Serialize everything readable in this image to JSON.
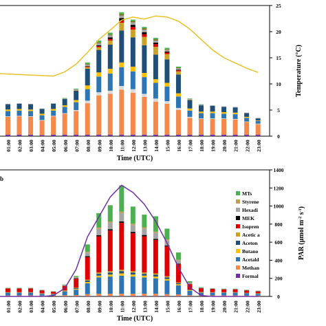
{
  "time_labels": [
    "01:00",
    "02:00",
    "03:00",
    "04:00",
    "05:00",
    "06:00",
    "07:00",
    "08:00",
    "09:00",
    "10:00",
    "11:00",
    "12:00",
    "13:00",
    "14:00",
    "15:00",
    "16:00",
    "17:00",
    "18:00",
    "19:00",
    "20:00",
    "21:00",
    "22:00",
    "23:00"
  ],
  "chart_data": [
    {
      "type": "bar",
      "panel": "top",
      "stacked": true,
      "overlay": "line",
      "xlabel": "Time (UTC)",
      "y2label": "Temperature (°C)",
      "y2lim": [
        0,
        25
      ],
      "y2ticks": [
        0,
        5,
        10,
        15,
        20,
        25
      ],
      "categories": [
        "01:00",
        "02:00",
        "03:00",
        "04:00",
        "05:00",
        "06:00",
        "07:00",
        "08:00",
        "09:00",
        "10:00",
        "11:00",
        "12:00",
        "13:00",
        "14:00",
        "15:00",
        "16:00",
        "17:00",
        "18:00",
        "19:00",
        "20:00",
        "21:00",
        "22:00",
        "23:00"
      ],
      "series": [
        {
          "color": "#7030a0",
          "values": [
            0.3,
            0.3,
            0.3,
            0.2,
            0.3,
            0.3,
            0.3,
            0.3,
            0.3,
            0.3,
            0.3,
            0.3,
            0.3,
            0.3,
            0.3,
            0.3,
            0.3,
            0.3,
            0.3,
            0.3,
            0.3,
            0.3,
            0.3
          ]
        },
        {
          "color": "#f4894a",
          "values": [
            3.4,
            3.5,
            3.4,
            2.8,
            3.5,
            4.0,
            4.5,
            6.0,
            7.5,
            7.8,
            8.6,
            8.0,
            7.2,
            6.3,
            5.9,
            4.7,
            3.2,
            3.0,
            3.0,
            3.0,
            2.9,
            2.4,
            2.0
          ]
        },
        {
          "color": "#d9d9d9",
          "values": [
            0.1,
            0.1,
            0.1,
            0.1,
            0.1,
            0.1,
            0.2,
            0.5,
            0.6,
            0.6,
            0.7,
            0.7,
            0.6,
            0.6,
            0.5,
            0.4,
            0.2,
            0.1,
            0.1,
            0.1,
            0.1,
            0.1,
            0.1
          ]
        },
        {
          "color": "#2e75b6",
          "values": [
            1.0,
            1.0,
            1.0,
            0.9,
            1.0,
            1.2,
            1.5,
            2.2,
            3.0,
            3.3,
            3.6,
            3.4,
            3.2,
            3.0,
            2.8,
            2.2,
            1.2,
            1.0,
            1.0,
            0.9,
            0.9,
            0.7,
            0.5
          ]
        },
        {
          "color": "#ffc000",
          "values": [
            0.3,
            0.3,
            0.3,
            0.3,
            0.3,
            0.3,
            0.4,
            0.7,
            0.8,
            0.9,
            0.9,
            0.9,
            0.8,
            0.7,
            0.7,
            0.6,
            0.4,
            0.3,
            0.3,
            0.3,
            0.3,
            0.2,
            0.1
          ]
        },
        {
          "color": "#1f4e79",
          "values": [
            1.0,
            1.0,
            1.0,
            0.9,
            1.0,
            1.2,
            1.8,
            3.2,
            4.3,
            4.6,
            6.1,
            5.6,
            5.3,
            4.7,
            4.5,
            3.6,
            1.6,
            1.2,
            1.1,
            1.0,
            1.0,
            0.7,
            0.4
          ]
        },
        {
          "color": "#c9a227",
          "values": [
            0.0,
            0.0,
            0.0,
            0.0,
            0.0,
            0.0,
            0.1,
            0.3,
            0.5,
            0.8,
            1.5,
            1.5,
            1.6,
            1.5,
            1.0,
            0.6,
            0.1,
            0.0,
            0.0,
            0.0,
            0.0,
            0.0,
            0.0
          ]
        },
        {
          "color": "#e00000",
          "values": [
            0.0,
            0.0,
            0.0,
            0.0,
            0.0,
            0.0,
            0.0,
            0.1,
            0.2,
            0.3,
            0.4,
            0.5,
            0.5,
            0.5,
            0.3,
            0.2,
            0.0,
            0.0,
            0.0,
            0.0,
            0.0,
            0.0,
            0.0
          ]
        },
        {
          "color": "#000000",
          "values": [
            0.0,
            0.0,
            0.0,
            0.0,
            0.0,
            0.0,
            0.0,
            0.1,
            0.2,
            0.3,
            0.5,
            0.4,
            0.4,
            0.3,
            0.2,
            0.1,
            0.0,
            0.0,
            0.0,
            0.0,
            0.0,
            0.0,
            0.0
          ]
        },
        {
          "color": "#a5a5a5",
          "values": [
            0.1,
            0.1,
            0.1,
            0.1,
            0.1,
            0.1,
            0.2,
            0.3,
            0.4,
            0.4,
            0.5,
            0.5,
            0.5,
            0.4,
            0.3,
            0.3,
            0.1,
            0.1,
            0.1,
            0.1,
            0.1,
            0.1,
            0.1
          ]
        },
        {
          "color": "#7f6000",
          "values": [
            0.0,
            0.0,
            0.0,
            0.0,
            0.0,
            0.0,
            0.0,
            0.1,
            0.1,
            0.1,
            0.2,
            0.2,
            0.2,
            0.2,
            0.1,
            0.1,
            0.0,
            0.0,
            0.0,
            0.0,
            0.0,
            0.0,
            0.0
          ]
        },
        {
          "color": "#4caf50",
          "values": [
            0.0,
            0.0,
            0.0,
            0.0,
            0.0,
            0.1,
            0.1,
            0.3,
            0.4,
            0.4,
            0.4,
            0.3,
            0.3,
            0.3,
            0.3,
            0.2,
            0.1,
            0.1,
            0.0,
            0.0,
            0.0,
            0.0,
            0.0
          ]
        }
      ],
      "line": {
        "color": "#e6c229",
        "x": [
          "00:00",
          "02:00",
          "04:00",
          "05:00",
          "06:00",
          "07:00",
          "08:00",
          "09:00",
          "10:00",
          "11:00",
          "12:00",
          "13:00",
          "14:00",
          "15:00",
          "16:00",
          "17:00",
          "18:00",
          "19:00",
          "20:00",
          "21:00",
          "22:00",
          "23:00"
        ],
        "values": [
          12.0,
          11.8,
          11.6,
          11.5,
          12.3,
          13.8,
          16.0,
          18.5,
          20.3,
          22.2,
          22.8,
          22.4,
          23.0,
          22.8,
          22.0,
          20.5,
          18.5,
          16.5,
          15.0,
          14.0,
          13.0,
          12.2
        ]
      }
    },
    {
      "type": "bar",
      "panel": "bottom",
      "stacked": true,
      "overlay": "line",
      "xlabel": "Time (UTC)",
      "y2label": "PAR (μmol m-2 s-1)",
      "y2lim": [
        0,
        1400
      ],
      "y2ticks": [
        0,
        200,
        400,
        600,
        800,
        1000,
        1200,
        1400
      ],
      "categories": [
        "01:00",
        "02:00",
        "03:00",
        "04:00",
        "05:00",
        "06:00",
        "07:00",
        "08:00",
        "09:00",
        "10:00",
        "11:00",
        "12:00",
        "13:00",
        "14:00",
        "15:00",
        "16:00",
        "17:00",
        "18:00",
        "19:00",
        "20:00",
        "21:00",
        "22:00",
        "23:00"
      ],
      "series": [
        {
          "color": "#7030a0",
          "values": [
            3,
            3,
            3,
            3,
            3,
            3,
            3,
            5,
            5,
            5,
            5,
            5,
            5,
            5,
            5,
            5,
            3,
            3,
            3,
            3,
            3,
            3,
            3
          ]
        },
        {
          "color": "#f4894a",
          "values": [
            8,
            8,
            8,
            6,
            6,
            10,
            12,
            20,
            25,
            25,
            25,
            25,
            25,
            25,
            20,
            18,
            10,
            8,
            8,
            8,
            8,
            6,
            6
          ]
        },
        {
          "color": "#2e75b6",
          "values": [
            30,
            30,
            30,
            20,
            15,
            40,
            60,
            120,
            180,
            190,
            200,
            190,
            180,
            170,
            150,
            100,
            50,
            30,
            30,
            30,
            30,
            25,
            20
          ]
        },
        {
          "color": "#ffc000",
          "values": [
            2,
            2,
            2,
            2,
            2,
            5,
            8,
            15,
            20,
            22,
            25,
            22,
            20,
            20,
            18,
            12,
            5,
            3,
            2,
            2,
            2,
            2,
            2
          ]
        },
        {
          "color": "#1f4e79",
          "values": [
            2,
            2,
            2,
            2,
            2,
            5,
            8,
            15,
            20,
            22,
            25,
            22,
            20,
            20,
            18,
            12,
            5,
            3,
            2,
            2,
            2,
            2,
            2
          ]
        },
        {
          "color": "#c9a227",
          "values": [
            2,
            2,
            2,
            2,
            2,
            3,
            5,
            10,
            15,
            15,
            15,
            15,
            15,
            15,
            12,
            8,
            3,
            2,
            2,
            2,
            2,
            2,
            2
          ]
        },
        {
          "color": "#e00000",
          "values": [
            40,
            40,
            40,
            30,
            20,
            50,
            100,
            250,
            400,
            450,
            520,
            420,
            400,
            370,
            330,
            200,
            60,
            40,
            35,
            30,
            30,
            25,
            20
          ]
        },
        {
          "color": "#000000",
          "values": [
            2,
            2,
            2,
            2,
            2,
            3,
            5,
            10,
            12,
            15,
            15,
            15,
            15,
            12,
            10,
            8,
            3,
            2,
            2,
            2,
            2,
            2,
            2
          ]
        },
        {
          "color": "#a5a5a5",
          "values": [
            3,
            3,
            3,
            2,
            2,
            5,
            10,
            40,
            70,
            70,
            90,
            75,
            70,
            65,
            55,
            35,
            10,
            5,
            3,
            3,
            3,
            3,
            2
          ]
        },
        {
          "color": "#c0a060",
          "values": [
            2,
            2,
            2,
            2,
            2,
            3,
            5,
            10,
            15,
            15,
            18,
            15,
            15,
            15,
            12,
            8,
            3,
            2,
            2,
            2,
            2,
            2,
            2
          ]
        },
        {
          "color": "#4caf50",
          "values": [
            2,
            2,
            2,
            2,
            2,
            5,
            10,
            80,
            160,
            180,
            290,
            190,
            140,
            170,
            120,
            80,
            15,
            5,
            3,
            2,
            2,
            2,
            2
          ]
        }
      ],
      "line": {
        "color": "#7030a0",
        "x": [
          "00:00",
          "01:00",
          "02:00",
          "03:00",
          "04:00",
          "05:00",
          "06:00",
          "07:00",
          "08:00",
          "09:00",
          "10:00",
          "11:00",
          "12:00",
          "13:00",
          "14:00",
          "15:00",
          "16:00",
          "17:00",
          "18:00",
          "19:00",
          "20:00",
          "21:00",
          "22:00",
          "23:00"
        ],
        "values": [
          0,
          0,
          0,
          0,
          0,
          10,
          90,
          300,
          660,
          880,
          1100,
          1230,
          1150,
          1020,
          830,
          590,
          320,
          100,
          10,
          0,
          0,
          0,
          0,
          0
        ]
      },
      "legend": {
        "placement": "right",
        "entries": [
          {
            "label": "MTs",
            "color": "#4caf50"
          },
          {
            "label": "Styrene",
            "color": "#c0a060"
          },
          {
            "label": "Hexadi",
            "color": "#a5a5a5"
          },
          {
            "label": "MEK",
            "color": "#000000"
          },
          {
            "label": "Isopren",
            "color": "#e00000"
          },
          {
            "label": "Acetic a",
            "color": "#c9a227"
          },
          {
            "label": "Aceton",
            "color": "#1f4e79"
          },
          {
            "label": "Butano",
            "color": "#ffc000"
          },
          {
            "label": "Acetald",
            "color": "#2e75b6"
          },
          {
            "label": "Methan",
            "color": "#f4894a"
          },
          {
            "label": "Formal",
            "color": "#7030a0"
          }
        ]
      }
    }
  ]
}
